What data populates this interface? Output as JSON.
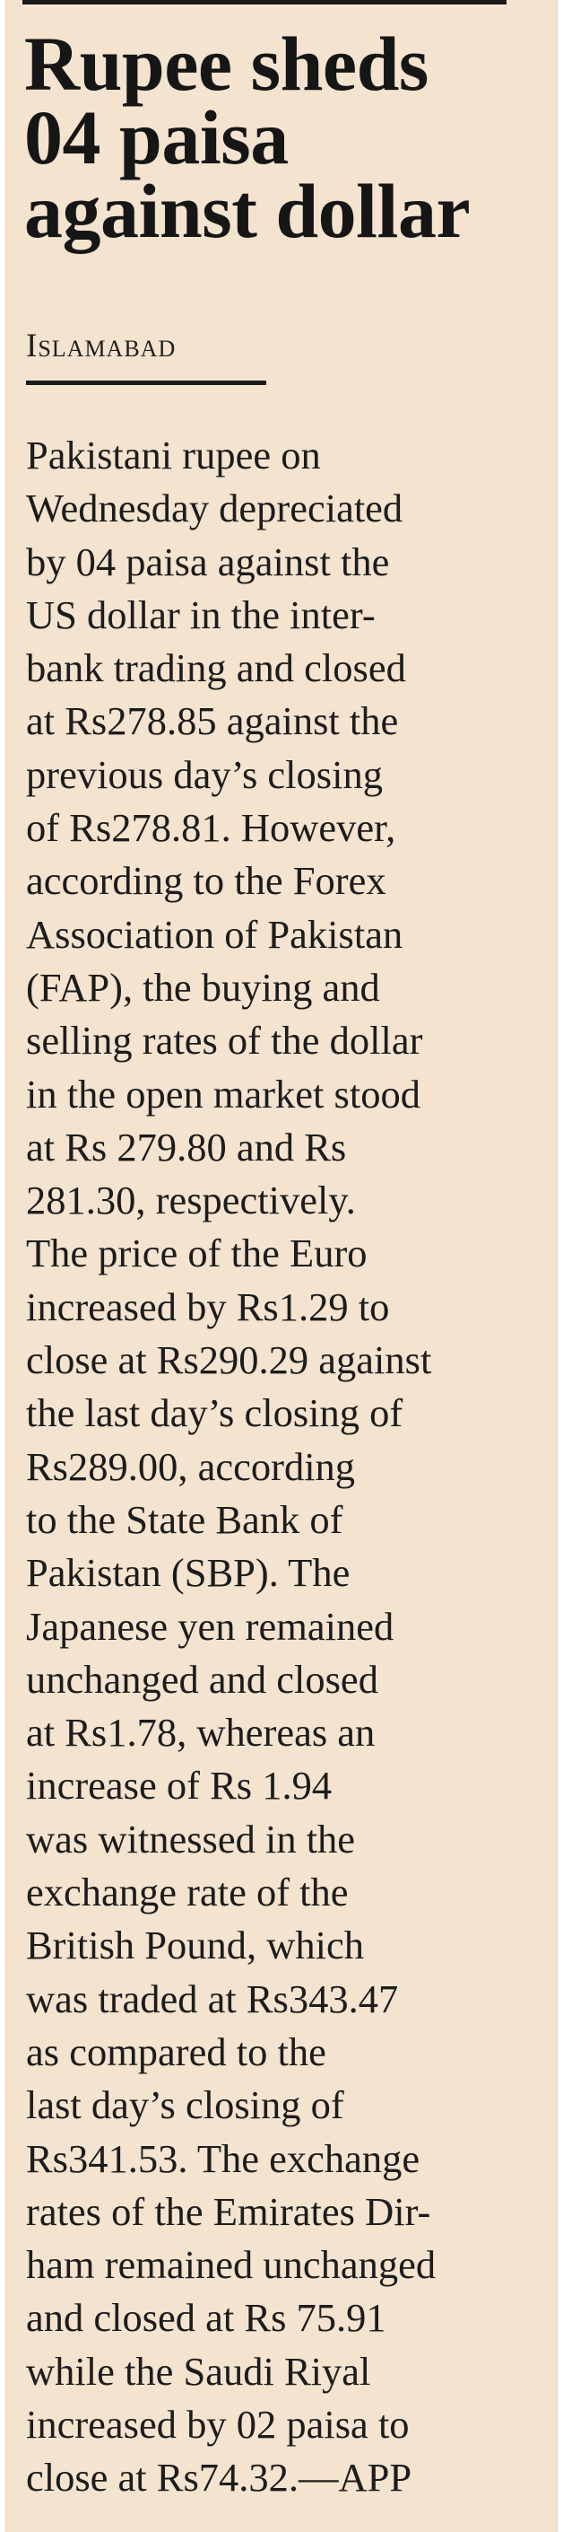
{
  "article": {
    "headline_lines": [
      "Rupee sheds",
      "04 paisa",
      "against dollar"
    ],
    "dateline": "Islamabad",
    "body_lines": [
      "Pakistani rupee on",
      "Wednesday depreciated",
      "by 04 paisa against the",
      "US dollar in the inter-",
      "bank trading and closed",
      "at Rs278.85 against the",
      "previous day’s closing",
      "of Rs278.81. However,",
      "according to the Forex",
      "Association of Pakistan",
      "(FAP), the buying and",
      "selling rates of the dollar",
      "in the open market stood",
      "at Rs 279.80 and Rs",
      "281.30, respectively.",
      "The price of the Euro",
      "increased by Rs1.29 to",
      "close at Rs290.29 against",
      "the last day’s closing of",
      "Rs289.00, according",
      "to the State Bank of",
      "Pakistan (SBP). The",
      "Japanese yen remained",
      "unchanged and closed",
      "at Rs1.78, whereas an",
      "increase of Rs 1.94",
      "was witnessed in the",
      "exchange rate of the",
      "British Pound, which",
      "was traded at Rs343.47",
      "as compared to the",
      "last day’s closing of",
      "Rs341.53. The exchange",
      "rates of the Emirates Dir-",
      "ham remained unchanged",
      "and closed at Rs 75.91",
      "while the Saudi Riyal",
      "increased by 02 paisa to",
      "close at Rs74.32.—APP"
    ]
  }
}
